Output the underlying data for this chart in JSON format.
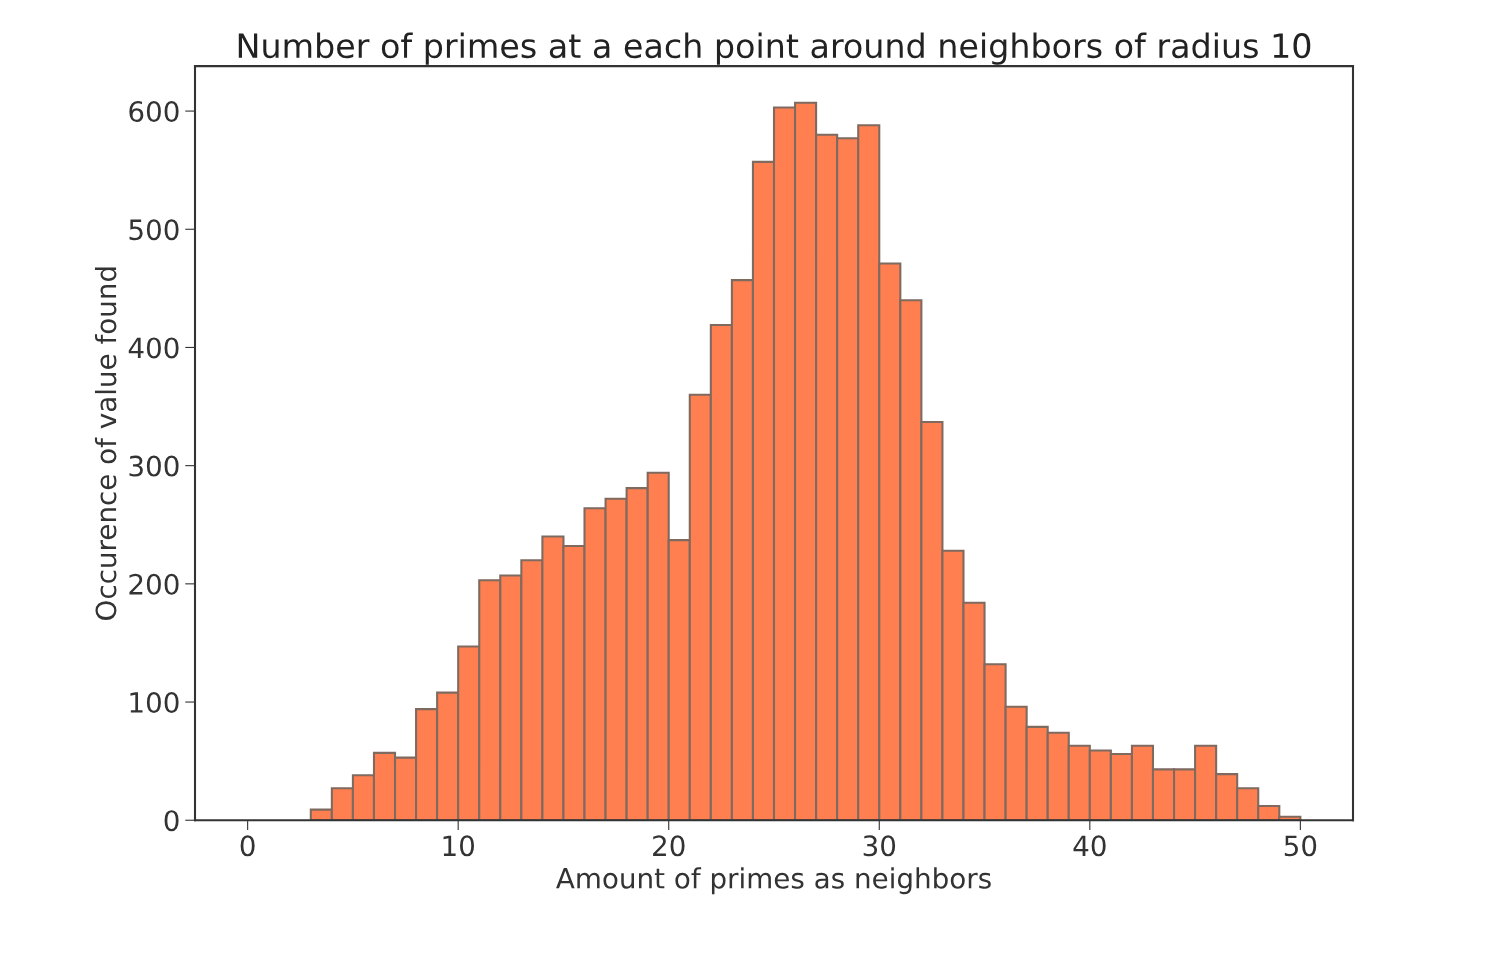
{
  "chart_data": {
    "type": "histogram",
    "title": "Number of primes at a each point around neighbors of radius 10",
    "xlabel": "Amount of primes as neighbors",
    "ylabel": "Occurence of value found",
    "bins": [
      3,
      4,
      5,
      6,
      7,
      8,
      9,
      10,
      11,
      12,
      13,
      14,
      15,
      16,
      17,
      18,
      19,
      20,
      21,
      22,
      23,
      24,
      25,
      26,
      27,
      28,
      29,
      30,
      31,
      32,
      33,
      34,
      35,
      36,
      37,
      38,
      39,
      40,
      41,
      42,
      43,
      44,
      45,
      46,
      47,
      48,
      49,
      50
    ],
    "values": [
      9,
      27,
      38,
      57,
      53,
      94,
      108,
      147,
      203,
      207,
      220,
      240,
      232,
      264,
      272,
      281,
      294,
      237,
      360,
      419,
      457,
      557,
      603,
      607,
      580,
      577,
      588,
      471,
      440,
      337,
      228,
      184,
      132,
      96,
      79,
      74,
      63,
      59,
      56,
      63,
      43,
      43,
      63,
      39,
      27,
      12,
      3
    ],
    "color": "#ff7f50",
    "xlim": [
      -2.5,
      52.5
    ],
    "xticks": [
      0,
      10,
      20,
      30,
      40,
      50
    ],
    "ylim": [
      0,
      638
    ],
    "yticks": [
      0,
      100,
      200,
      300,
      400,
      500,
      600
    ],
    "grid": false
  }
}
